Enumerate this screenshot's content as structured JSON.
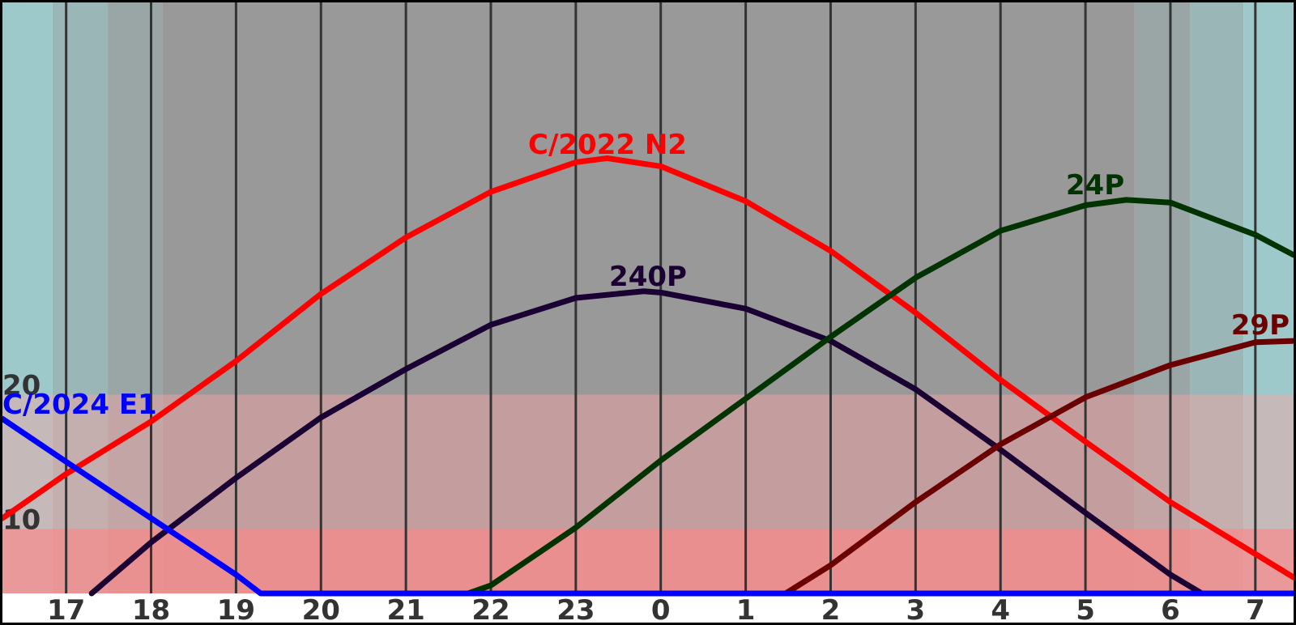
{
  "chart_data": {
    "type": "line",
    "xlim": [
      16.25,
      31.45
    ],
    "xticks": [
      17,
      18,
      19,
      20,
      21,
      22,
      23,
      {
        "value": 24,
        "label": "0"
      },
      {
        "value": 25,
        "label": "1"
      },
      {
        "value": 26,
        "label": "2"
      },
      {
        "value": 27,
        "label": "3"
      },
      {
        "value": 28,
        "label": "4"
      },
      {
        "value": 29,
        "label": "5"
      },
      {
        "value": 30,
        "label": "6"
      },
      {
        "value": 31,
        "label": "7"
      }
    ],
    "ylim": [
      5.2,
      49.2
    ],
    "yticks": [
      10,
      20
    ],
    "grid": true,
    "background_zones": [
      {
        "xlim": [
          16.25,
          16.84
        ],
        "color": "#9dc9ca"
      },
      {
        "xlim": [
          16.84,
          17.49
        ],
        "color": "#9bb6b6"
      },
      {
        "xlim": [
          17.49,
          18.13
        ],
        "color": "#9aa6a6"
      },
      {
        "xlim": [
          18.13,
          29.58
        ],
        "color": "#999999"
      },
      {
        "xlim": [
          29.58,
          30.23
        ],
        "color": "#9aa6a6"
      },
      {
        "xlim": [
          30.23,
          30.86
        ],
        "color": "#9bb6b6"
      },
      {
        "xlim": [
          30.86,
          31.45
        ],
        "color": "#9dc9ca"
      }
    ],
    "series": [
      {
        "name": "C/2022 N2",
        "color": "#ff0000",
        "x": [
          16.25,
          17,
          18,
          19,
          20,
          21,
          22,
          23,
          23.37,
          24,
          25,
          26,
          27,
          28,
          29,
          30,
          31.45
        ],
        "values": [
          10.8,
          14.1,
          18.0,
          22.5,
          27.5,
          31.7,
          35.1,
          37.3,
          37.6,
          37.0,
          34.4,
          30.7,
          26.1,
          21.1,
          16.5,
          12.0,
          6.4
        ]
      },
      {
        "name": "240P",
        "color": "#1a0033",
        "x": [
          17.3,
          18,
          19,
          20,
          21,
          22,
          23,
          23.8,
          24,
          25,
          26,
          27,
          28,
          29,
          30,
          30.37
        ],
        "values": [
          5.2,
          9.0,
          13.8,
          18.3,
          21.9,
          25.2,
          27.2,
          27.7,
          27.6,
          26.4,
          24.0,
          20.4,
          15.9,
          11.2,
          6.6,
          5.2
        ]
      },
      {
        "name": "24P",
        "color": "#003300",
        "x": [
          21.73,
          22,
          23,
          24,
          25,
          26,
          27,
          28,
          29,
          29.48,
          30,
          31,
          31.45
        ],
        "values": [
          5.2,
          5.8,
          10.1,
          15.1,
          19.7,
          24.3,
          28.7,
          32.2,
          34.1,
          34.5,
          34.3,
          31.9,
          30.4
        ]
      },
      {
        "name": "29P",
        "color": "#6b0000",
        "x": [
          25.47,
          26,
          27,
          28,
          29,
          30,
          31,
          31.45
        ],
        "values": [
          5.2,
          7.3,
          12.0,
          16.3,
          19.8,
          22.2,
          23.9,
          24.0
        ]
      },
      {
        "name": "C/2024 E1",
        "color": "#0000ff",
        "x": [
          16.25,
          17,
          18,
          19,
          19.29,
          31.45
        ],
        "values": [
          18.2,
          15.0,
          10.8,
          6.6,
          5.2,
          5.2
        ]
      }
    ]
  }
}
